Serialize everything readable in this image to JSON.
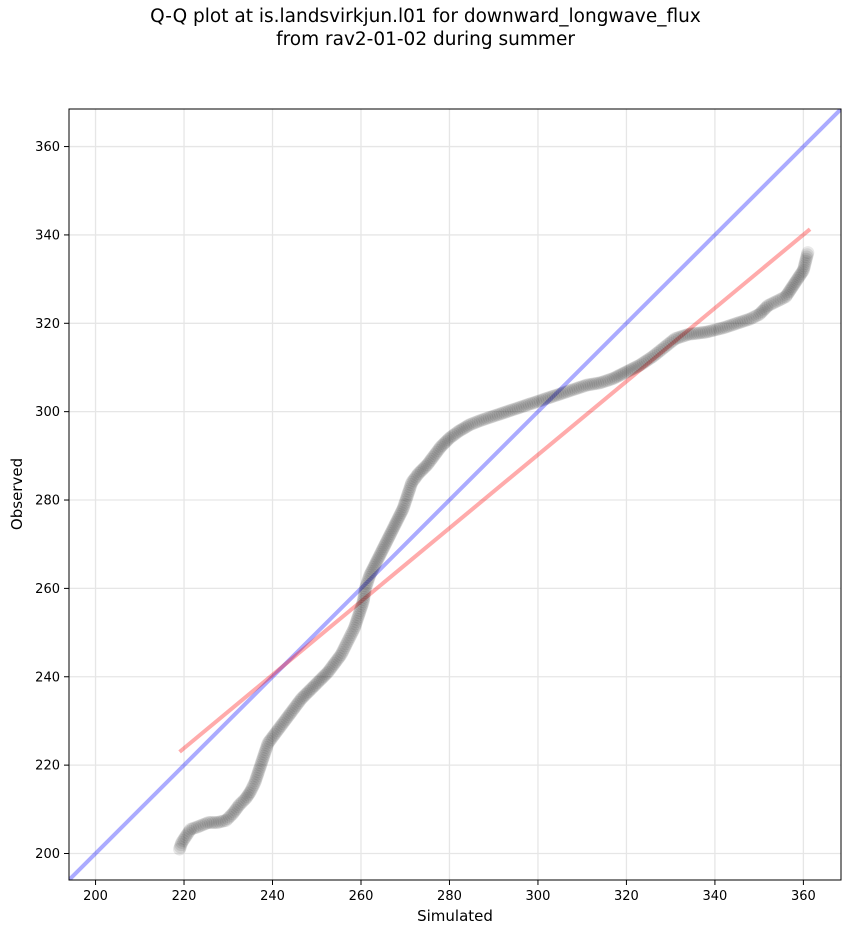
{
  "chart_data": {
    "type": "scatter",
    "title": [
      "Q-Q plot at is.landsvirkjun.l01 for downward_longwave_flux",
      "from rav2-01-02 during summer"
    ],
    "xlabel": "Simulated",
    "ylabel": "Observed",
    "xlim": [
      194,
      368.5
    ],
    "ylim": [
      194,
      368.5
    ],
    "xticks": [
      200,
      220,
      240,
      260,
      280,
      300,
      320,
      340,
      360
    ],
    "yticks": [
      200,
      220,
      240,
      260,
      280,
      300,
      320,
      340,
      360
    ],
    "grid": true,
    "colors": {
      "points": "#000000",
      "identity_line": "#0000ff",
      "fit_line": "#ff0000",
      "grid": "#e6e6e6"
    },
    "identity_line": {
      "x": [
        194,
        368.5
      ],
      "y": [
        194,
        368.5
      ]
    },
    "fit_line": {
      "x": [
        219,
        361.5
      ],
      "y": [
        223,
        341.3
      ]
    },
    "quantile_curve": [
      [
        219,
        201
      ],
      [
        219.5,
        202.5
      ],
      [
        221.5,
        205.5
      ],
      [
        223,
        206
      ],
      [
        225.5,
        207
      ],
      [
        227.5,
        207
      ],
      [
        229.5,
        207.5
      ],
      [
        231,
        209
      ],
      [
        232.5,
        211
      ],
      [
        234,
        212.5
      ],
      [
        235,
        214
      ],
      [
        236,
        216
      ],
      [
        237,
        219
      ],
      [
        238,
        222
      ],
      [
        239,
        225
      ],
      [
        240.5,
        227
      ],
      [
        242,
        229
      ],
      [
        243.5,
        231
      ],
      [
        245,
        233
      ],
      [
        246.5,
        235
      ],
      [
        248.5,
        237
      ],
      [
        250.5,
        239
      ],
      [
        252.5,
        241
      ],
      [
        254,
        243
      ],
      [
        255.5,
        245
      ],
      [
        256.5,
        247
      ],
      [
        257.5,
        249
      ],
      [
        258.5,
        251
      ],
      [
        259.5,
        254
      ],
      [
        260.5,
        257
      ],
      [
        261,
        260
      ],
      [
        262,
        263
      ],
      [
        263.5,
        266
      ],
      [
        265,
        269
      ],
      [
        266.5,
        272
      ],
      [
        268,
        275
      ],
      [
        269.5,
        278
      ],
      [
        270.5,
        281
      ],
      [
        271.5,
        284
      ],
      [
        273,
        286
      ],
      [
        275,
        288
      ],
      [
        276.5,
        290
      ],
      [
        278,
        292
      ],
      [
        280,
        294
      ],
      [
        282,
        295.5
      ],
      [
        284.5,
        297
      ],
      [
        287,
        298
      ],
      [
        290,
        299
      ],
      [
        293,
        300
      ],
      [
        296,
        301
      ],
      [
        299,
        302
      ],
      [
        302,
        303
      ],
      [
        305,
        304
      ],
      [
        308,
        305
      ],
      [
        311,
        306
      ],
      [
        314,
        306.5
      ],
      [
        317,
        307.5
      ],
      [
        320,
        309
      ],
      [
        323,
        310.5
      ],
      [
        326,
        312.5
      ],
      [
        328.5,
        314.5
      ],
      [
        331,
        316.5
      ],
      [
        334,
        317.5
      ],
      [
        338,
        318
      ],
      [
        342,
        319
      ],
      [
        345,
        320
      ],
      [
        348,
        321
      ],
      [
        350,
        322
      ],
      [
        352,
        324
      ],
      [
        354,
        325
      ],
      [
        356,
        326
      ],
      [
        357,
        327.5
      ],
      [
        358,
        329
      ],
      [
        359,
        330.5
      ],
      [
        360,
        332
      ],
      [
        361,
        336
      ]
    ]
  }
}
